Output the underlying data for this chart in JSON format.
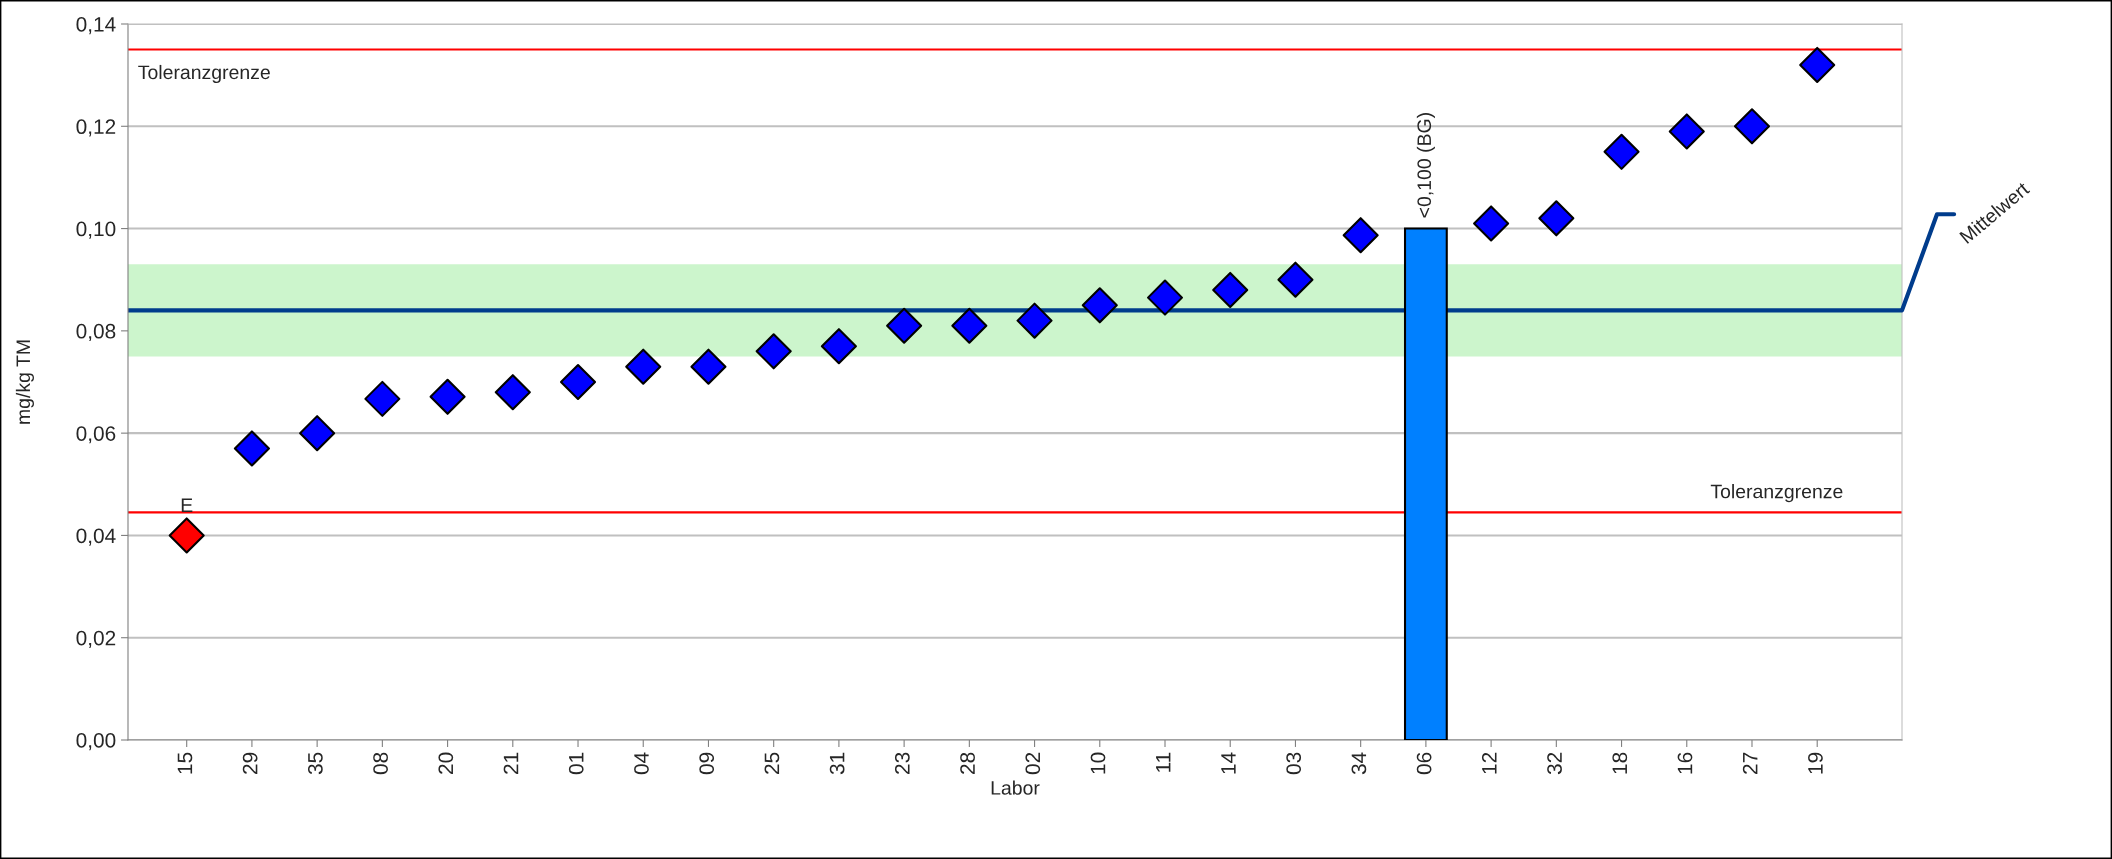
{
  "chart_data": {
    "type": "scatter",
    "xlabel": "Labor",
    "ylabel": "mg/kg TM",
    "categories": [
      "15",
      "29",
      "35",
      "08",
      "20",
      "21",
      "01",
      "04",
      "09",
      "25",
      "31",
      "23",
      "28",
      "02",
      "10",
      "11",
      "14",
      "03",
      "34",
      "06",
      "12",
      "32",
      "18",
      "16",
      "27",
      "19"
    ],
    "series": [
      {
        "marker": "diamond",
        "values": [
          0.04,
          0.057,
          0.06,
          0.0667,
          0.0671,
          0.068,
          0.07,
          0.073,
          0.073,
          0.076,
          0.077,
          0.081,
          0.081,
          0.082,
          0.085,
          0.0865,
          0.088,
          0.09,
          0.0987,
          null,
          0.101,
          0.102,
          0.115,
          0.119,
          0.12,
          0.132
        ],
        "colors": [
          "#ff0000",
          "#0000ff",
          "#0000ff",
          "#0000ff",
          "#0000ff",
          "#0000ff",
          "#0000ff",
          "#0000ff",
          "#0000ff",
          "#0000ff",
          "#0000ff",
          "#0000ff",
          "#0000ff",
          "#0000ff",
          "#0000ff",
          "#0000ff",
          "#0000ff",
          "#0000ff",
          "#0000ff",
          "#0000ff",
          "#0000ff",
          "#0000ff",
          "#0000ff",
          "#0000ff",
          "#0000ff",
          "#0000ff"
        ]
      },
      {
        "type": "bar",
        "color": "#0080ff",
        "values": [
          null,
          null,
          null,
          null,
          null,
          null,
          null,
          null,
          null,
          null,
          null,
          null,
          null,
          null,
          null,
          null,
          null,
          null,
          null,
          0.1,
          null,
          null,
          null,
          null,
          null,
          null
        ],
        "value_labels": [
          null,
          null,
          null,
          null,
          null,
          null,
          null,
          null,
          null,
          null,
          null,
          null,
          null,
          null,
          null,
          null,
          null,
          null,
          null,
          "<0,100 (BG)",
          null,
          null,
          null,
          null,
          null,
          null
        ]
      }
    ],
    "ylim": [
      0,
      0.14
    ],
    "yticks": [
      {
        "value": 0,
        "label": "0,00"
      },
      {
        "value": 0.02,
        "label": "0,02"
      },
      {
        "value": 0.04,
        "label": "0,04"
      },
      {
        "value": 0.06,
        "label": "0,06"
      },
      {
        "value": 0.08,
        "label": "0,08"
      },
      {
        "value": 0.1,
        "label": "0,10"
      },
      {
        "value": 0.12,
        "label": "0,12"
      },
      {
        "value": 0.14,
        "label": "0,14"
      }
    ],
    "grid": "y",
    "ref_lines": [
      {
        "axis": "y",
        "value": 0.135,
        "label": "Toleranzgrenze",
        "color": "#ff0000"
      },
      {
        "axis": "y",
        "value": 0.0445,
        "label": "Toleranzgrenze",
        "color": "#ff0000"
      },
      {
        "axis": "y",
        "value": 0.084,
        "label": "Mittelwert",
        "color": "#003c8c"
      }
    ],
    "bands": [
      {
        "axis": "y",
        "from": 0.075,
        "to": 0.093,
        "color": "#ccf5cc"
      }
    ],
    "annotations": [
      {
        "text": "E",
        "x": "15",
        "y": 0.04
      }
    ]
  }
}
